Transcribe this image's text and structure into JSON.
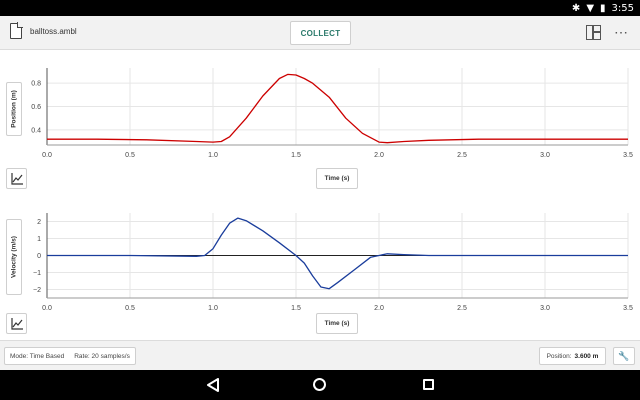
{
  "status_bar": {
    "time": "3:55",
    "icons": [
      "bluetooth-icon",
      "wifi-icon",
      "battery-icon"
    ]
  },
  "toolbar": {
    "file_name": "balltoss.ambl",
    "collect_label": "COLLECT"
  },
  "graphs": [
    {
      "y_label": "Position (m)",
      "x_label": "Time (s)",
      "line_color": "#cc0000",
      "x_ticks": [
        "0.0",
        "0.5",
        "1.0",
        "1.5",
        "2.0",
        "2.5",
        "3.0",
        "3.5"
      ],
      "y_ticks": [
        "0.4",
        "0.6",
        "0.8"
      ],
      "xlim": [
        0,
        3.5
      ],
      "ylim": [
        0.27,
        0.93
      ],
      "points": [
        [
          0,
          0.32
        ],
        [
          0.3,
          0.32
        ],
        [
          0.6,
          0.315
        ],
        [
          0.9,
          0.3
        ],
        [
          1.0,
          0.295
        ],
        [
          1.05,
          0.3
        ],
        [
          1.1,
          0.34
        ],
        [
          1.2,
          0.5
        ],
        [
          1.3,
          0.69
        ],
        [
          1.4,
          0.84
        ],
        [
          1.45,
          0.875
        ],
        [
          1.5,
          0.87
        ],
        [
          1.55,
          0.84
        ],
        [
          1.6,
          0.8
        ],
        [
          1.7,
          0.68
        ],
        [
          1.8,
          0.5
        ],
        [
          1.9,
          0.37
        ],
        [
          2.0,
          0.295
        ],
        [
          2.05,
          0.29
        ],
        [
          2.15,
          0.3
        ],
        [
          2.3,
          0.31
        ],
        [
          2.6,
          0.32
        ],
        [
          3.0,
          0.32
        ],
        [
          3.5,
          0.32
        ]
      ]
    },
    {
      "y_label": "Velocity (m/s)",
      "x_label": "Time (s)",
      "line_color": "#1a3d9c",
      "x_ticks": [
        "0.0",
        "0.5",
        "1.0",
        "1.5",
        "2.0",
        "2.5",
        "3.0",
        "3.5"
      ],
      "y_ticks": [
        "2",
        "1",
        "0",
        "−1",
        "−2"
      ],
      "xlim": [
        0,
        3.5
      ],
      "ylim": [
        -2.5,
        2.5
      ],
      "points": [
        [
          0,
          0
        ],
        [
          0.5,
          0
        ],
        [
          0.9,
          -0.05
        ],
        [
          0.95,
          0
        ],
        [
          1.0,
          0.4
        ],
        [
          1.05,
          1.2
        ],
        [
          1.1,
          1.9
        ],
        [
          1.15,
          2.2
        ],
        [
          1.2,
          2.05
        ],
        [
          1.3,
          1.45
        ],
        [
          1.4,
          0.75
        ],
        [
          1.5,
          0
        ],
        [
          1.55,
          -0.45
        ],
        [
          1.6,
          -1.2
        ],
        [
          1.65,
          -1.85
        ],
        [
          1.7,
          -1.95
        ],
        [
          1.75,
          -1.6
        ],
        [
          1.85,
          -0.85
        ],
        [
          1.95,
          -0.1
        ],
        [
          2.0,
          0
        ],
        [
          2.05,
          0.1
        ],
        [
          2.15,
          0.05
        ],
        [
          2.3,
          0
        ],
        [
          3.5,
          0
        ]
      ]
    }
  ],
  "bottom_bar": {
    "mode": "Mode: Time Based",
    "rate": "Rate: 20 samples/s",
    "position_label": "Position:",
    "position_value": "3.600 m"
  }
}
